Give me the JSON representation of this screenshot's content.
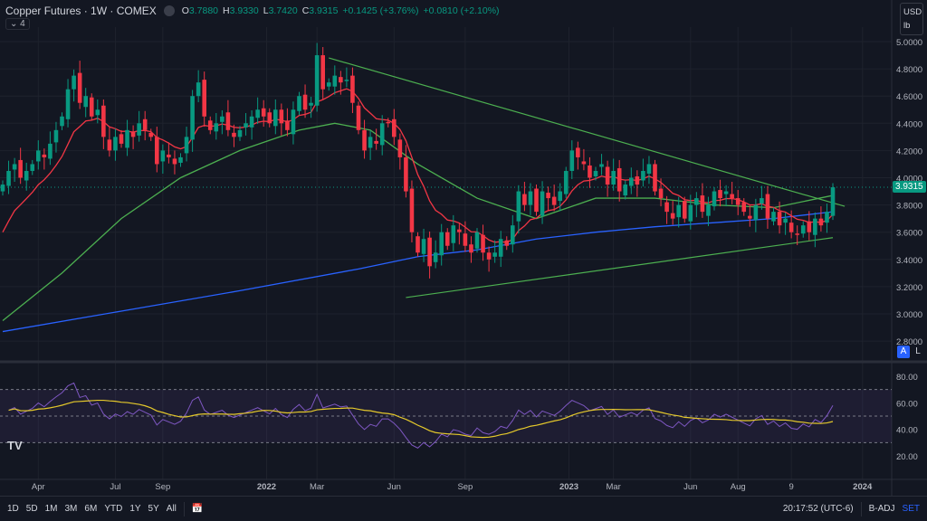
{
  "header": {
    "title": "Copper Futures · 1W · COMEX",
    "o_label": "O",
    "o": "3.7880",
    "h_label": "H",
    "h": "3.9330",
    "l_label": "L",
    "l": "3.7420",
    "c_label": "C",
    "c": "3.9315",
    "change": "+0.1425 (+3.76%)",
    "change2": "+0.0810 (+2.10%)",
    "indicators_count": "4"
  },
  "currency": "USD",
  "unit": "lb",
  "price_tag": "3.9315",
  "scale_buttons": [
    "A",
    "L"
  ],
  "bottom": {
    "ranges": [
      "1D",
      "5D",
      "1M",
      "3M",
      "6M",
      "YTD",
      "1Y",
      "5Y",
      "All"
    ],
    "time": "20:17:52 (UTC-6)",
    "badj": "B-ADJ",
    "set": "SET"
  },
  "colors": {
    "up": "#089981",
    "down": "#f23645",
    "ma_fast": "#f23645",
    "ma_mid": "#4caf50",
    "ma_slow": "#2962ff",
    "trend": "#4caf50",
    "rsi": "#7e57c2",
    "rsi_ma": "#e5c92b"
  },
  "chart_data": {
    "type": "candlestick",
    "symbol": "Copper Futures",
    "interval": "1W",
    "price_axis": {
      "min": 2.8,
      "max": 5.0,
      "ticks": [
        "5.0000",
        "4.8000",
        "4.6000",
        "4.4000",
        "4.2000",
        "4.0000",
        "3.8000",
        "3.6000",
        "3.4000",
        "3.2000",
        "3.0000",
        "2.8000"
      ]
    },
    "time_ticks": [
      {
        "label": "Apr",
        "i": 6
      },
      {
        "label": "Jul",
        "i": 19
      },
      {
        "label": "Sep",
        "i": 27
      },
      {
        "label": "2022",
        "i": 44.5
      },
      {
        "label": "Mar",
        "i": 53
      },
      {
        "label": "Jun",
        "i": 66
      },
      {
        "label": "Sep",
        "i": 78
      },
      {
        "label": "2023",
        "i": 95.5
      },
      {
        "label": "Mar",
        "i": 103
      },
      {
        "label": "Jun",
        "i": 116
      },
      {
        "label": "Aug",
        "i": 124
      },
      {
        "label": "9",
        "i": 133
      },
      {
        "label": "2024",
        "i": 145
      }
    ],
    "closes": [
      3.95,
      4.05,
      4.1,
      4.0,
      4.05,
      4.1,
      4.2,
      4.15,
      4.25,
      4.35,
      4.45,
      4.65,
      4.75,
      4.55,
      4.6,
      4.45,
      4.5,
      4.3,
      4.2,
      4.3,
      4.25,
      4.35,
      4.3,
      4.4,
      4.35,
      4.3,
      4.1,
      4.2,
      4.15,
      4.1,
      4.15,
      4.3,
      4.6,
      4.7,
      4.45,
      4.35,
      4.4,
      4.45,
      4.35,
      4.3,
      4.35,
      4.4,
      4.45,
      4.5,
      4.45,
      4.4,
      4.5,
      4.4,
      4.35,
      4.5,
      4.6,
      4.5,
      4.55,
      4.9,
      4.65,
      4.7,
      4.75,
      4.7,
      4.72,
      4.55,
      4.35,
      4.2,
      4.3,
      4.25,
      4.4,
      4.4,
      4.3,
      4.15,
      3.9,
      3.6,
      3.45,
      3.55,
      3.35,
      3.45,
      3.6,
      3.5,
      3.65,
      3.6,
      3.5,
      3.45,
      3.6,
      3.45,
      3.4,
      3.45,
      3.55,
      3.5,
      3.65,
      3.9,
      3.8,
      3.9,
      3.75,
      3.9,
      3.85,
      3.8,
      3.9,
      4.05,
      4.2,
      4.15,
      4.1,
      4.0,
      4.05,
      4.1,
      3.95,
      4.05,
      3.9,
      3.95,
      4.0,
      3.95,
      4.05,
      4.1,
      3.9,
      3.85,
      3.75,
      3.7,
      3.8,
      3.7,
      3.8,
      3.85,
      3.75,
      3.8,
      3.9,
      3.85,
      3.9,
      3.85,
      3.8,
      3.75,
      3.7,
      3.8,
      3.85,
      3.7,
      3.75,
      3.65,
      3.7,
      3.6,
      3.58,
      3.65,
      3.6,
      3.7,
      3.65,
      3.75,
      3.93
    ],
    "ma_mid": [
      [
        0,
        2.95
      ],
      [
        10,
        3.3
      ],
      [
        20,
        3.7
      ],
      [
        30,
        4.0
      ],
      [
        40,
        4.2
      ],
      [
        50,
        4.35
      ],
      [
        56,
        4.4
      ],
      [
        62,
        4.35
      ],
      [
        70,
        4.1
      ],
      [
        80,
        3.85
      ],
      [
        90,
        3.7
      ],
      [
        100,
        3.85
      ],
      [
        110,
        3.85
      ],
      [
        120,
        3.8
      ],
      [
        130,
        3.78
      ],
      [
        140,
        3.87
      ]
    ],
    "ma_slow": [
      [
        0,
        2.87
      ],
      [
        20,
        3.02
      ],
      [
        40,
        3.17
      ],
      [
        60,
        3.33
      ],
      [
        70,
        3.42
      ],
      [
        80,
        3.47
      ],
      [
        90,
        3.55
      ],
      [
        100,
        3.6
      ],
      [
        110,
        3.64
      ],
      [
        120,
        3.67
      ],
      [
        130,
        3.7
      ],
      [
        140,
        3.75
      ]
    ],
    "trendlines": [
      {
        "from": [
          55,
          4.88
        ],
        "to": [
          142,
          3.79
        ]
      },
      {
        "from": [
          68,
          3.12
        ],
        "to": [
          140,
          3.56
        ]
      }
    ],
    "rsi": {
      "levels": [
        70,
        50,
        30
      ],
      "ticks": [
        "80.00",
        "60.00",
        "40.00",
        "20.00"
      ],
      "min": 20,
      "max": 80
    }
  }
}
